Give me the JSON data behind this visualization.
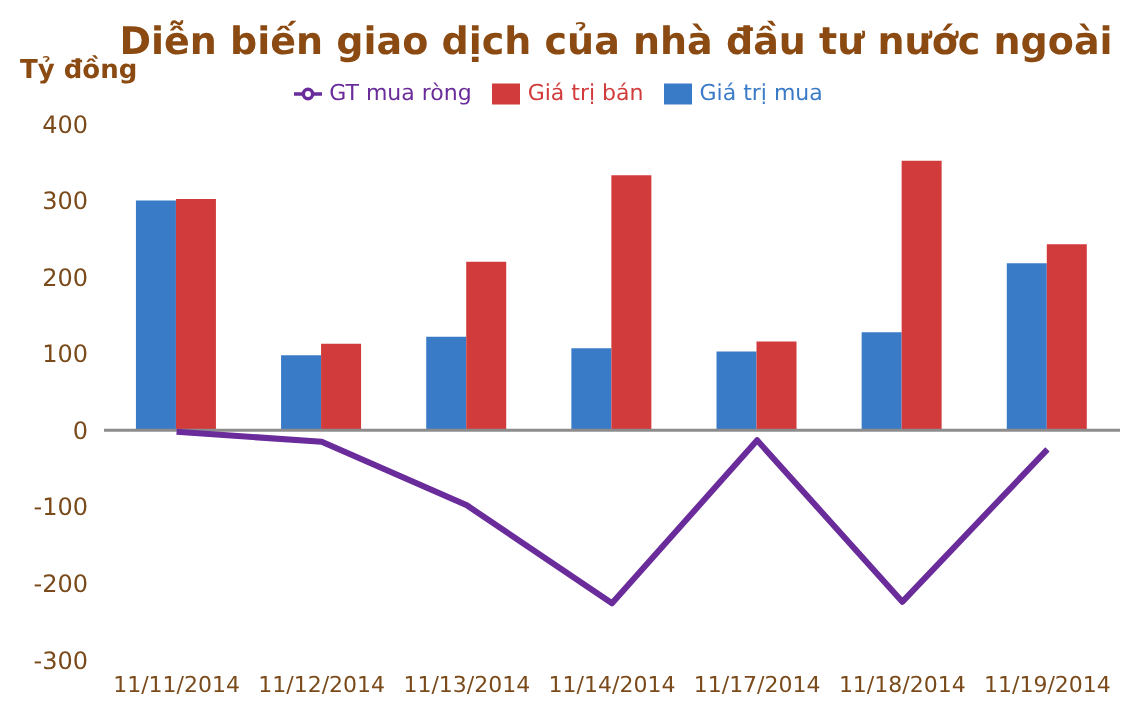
{
  "chart_data": {
    "type": "bar",
    "title": "Diễn biến giao dịch của nhà đầu tư nước ngoài",
    "ylabel": "Tỷ đồng",
    "categories": [
      "11/11/2014",
      "11/12/2014",
      "11/13/2014",
      "11/14/2014",
      "11/17/2014",
      "11/18/2014",
      "11/19/2014"
    ],
    "series": [
      {
        "name": "Giá trị mua",
        "color": "#3a7bc8",
        "values": [
          300,
          98,
          122,
          107,
          103,
          128,
          218
        ]
      },
      {
        "name": "Giá trị bán",
        "color": "#d13b3b",
        "values": [
          302,
          113,
          220,
          333,
          116,
          352,
          243
        ]
      },
      {
        "name": "GT mua ròng",
        "type": "line",
        "color": "#6a2c9a",
        "values": [
          -2,
          -15,
          -98,
          -226,
          -13,
          -224,
          -25
        ]
      }
    ],
    "ylim": [
      -300,
      400
    ],
    "yticks": [
      -300,
      -200,
      -100,
      0,
      100,
      200,
      300,
      400
    ],
    "grid": false,
    "legend": "top",
    "ref_lines": [
      {
        "axis": "y",
        "value": 0,
        "color": "#8c8c8c"
      }
    ]
  }
}
